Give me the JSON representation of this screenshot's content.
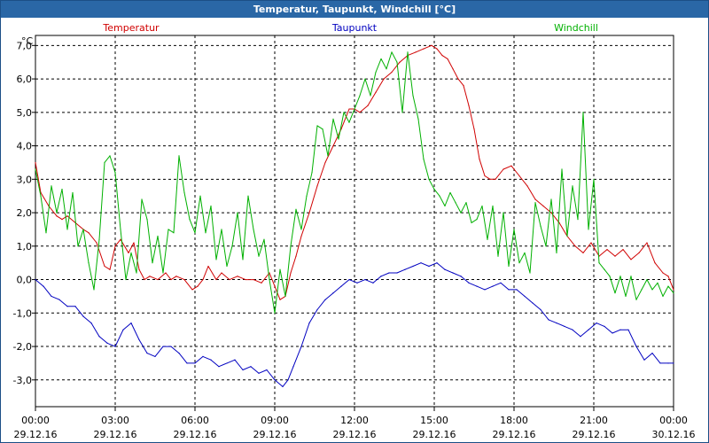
{
  "window": {
    "title": "Temperatur, Taupunkt, Windchill [°C]"
  },
  "colors": {
    "titlebar": "#2a67a6",
    "grid": "#000000",
    "temperatur": "#d00000",
    "taupunkt": "#0000c0",
    "windchill": "#00b000"
  },
  "chart_data": {
    "type": "line",
    "title": "Temperatur, Taupunkt, Windchill [°C]",
    "ylabel": "°C",
    "xlabel": "",
    "ylim": [
      -3.8,
      7.3
    ],
    "xlim": [
      0,
      24
    ],
    "grid": true,
    "yticks": [
      {
        "value": 7,
        "label": "7,0"
      },
      {
        "value": 6,
        "label": "6,0"
      },
      {
        "value": 5,
        "label": "5,0"
      },
      {
        "value": 4,
        "label": "4,0"
      },
      {
        "value": 3,
        "label": "3,0"
      },
      {
        "value": 2,
        "label": "2,0"
      },
      {
        "value": 1,
        "label": "1,0"
      },
      {
        "value": 0,
        "label": "0,0"
      },
      {
        "value": -1,
        "label": "-1,0"
      },
      {
        "value": -2,
        "label": "-2,0"
      },
      {
        "value": -3,
        "label": "-3,0"
      }
    ],
    "xticks": [
      {
        "value": 0,
        "time": "00:00",
        "date": "29.12.16"
      },
      {
        "value": 3,
        "time": "03:00",
        "date": "29.12.16"
      },
      {
        "value": 6,
        "time": "06:00",
        "date": "29.12.16"
      },
      {
        "value": 9,
        "time": "09:00",
        "date": "29.12.16"
      },
      {
        "value": 12,
        "time": "12:00",
        "date": "29.12.16"
      },
      {
        "value": 15,
        "time": "15:00",
        "date": "29.12.16"
      },
      {
        "value": 18,
        "time": "18:00",
        "date": "29.12.16"
      },
      {
        "value": 21,
        "time": "21:00",
        "date": "29.12.16"
      },
      {
        "value": 24,
        "time": "00:00",
        "date": "30.12.16"
      }
    ],
    "series": [
      {
        "name": "Temperatur",
        "legend_position": "top-left",
        "color": "#d00000",
        "x": [
          0,
          0.2,
          0.5,
          0.8,
          1.0,
          1.2,
          1.5,
          1.8,
          2.0,
          2.3,
          2.6,
          2.8,
          3.0,
          3.2,
          3.5,
          3.7,
          3.9,
          4.1,
          4.3,
          4.6,
          4.9,
          5.1,
          5.3,
          5.6,
          5.9,
          6.1,
          6.3,
          6.5,
          6.8,
          7.0,
          7.3,
          7.6,
          7.9,
          8.2,
          8.5,
          8.8,
          9.0,
          9.2,
          9.4,
          9.6,
          9.8,
          10.0,
          10.3,
          10.6,
          10.9,
          11.2,
          11.5,
          11.8,
          12.0,
          12.2,
          12.5,
          12.8,
          13.1,
          13.4,
          13.7,
          14.0,
          14.3,
          14.6,
          14.9,
          15.1,
          15.3,
          15.5,
          15.7,
          15.9,
          16.1,
          16.3,
          16.5,
          16.7,
          16.9,
          17.1,
          17.3,
          17.6,
          17.9,
          18.2,
          18.5,
          18.8,
          19.1,
          19.4,
          19.7,
          20.0,
          20.3,
          20.6,
          20.9,
          21.2,
          21.5,
          21.8,
          22.1,
          22.4,
          22.7,
          23.0,
          23.3,
          23.6,
          23.8,
          24.0
        ],
        "y": [
          3.5,
          2.6,
          2.2,
          1.9,
          1.8,
          1.9,
          1.7,
          1.5,
          1.4,
          1.1,
          0.4,
          0.3,
          1.0,
          1.2,
          0.8,
          1.1,
          0.3,
          0.0,
          0.1,
          0.0,
          0.2,
          0.0,
          0.1,
          0.0,
          -0.3,
          -0.2,
          0.0,
          0.4,
          0.0,
          0.2,
          0.0,
          0.1,
          0.0,
          0.0,
          -0.1,
          0.2,
          -0.2,
          -0.6,
          -0.5,
          0.2,
          0.7,
          1.3,
          2.0,
          2.8,
          3.5,
          4.0,
          4.5,
          5.1,
          5.1,
          5.0,
          5.2,
          5.6,
          6.0,
          6.2,
          6.5,
          6.7,
          6.8,
          6.9,
          7.0,
          6.9,
          6.7,
          6.6,
          6.3,
          6.0,
          5.8,
          5.2,
          4.5,
          3.6,
          3.1,
          3.0,
          3.0,
          3.3,
          3.4,
          3.1,
          2.8,
          2.4,
          2.2,
          2.0,
          1.7,
          1.3,
          1.0,
          0.8,
          1.1,
          0.7,
          0.9,
          0.7,
          0.9,
          0.6,
          0.8,
          1.1,
          0.5,
          0.2,
          0.1,
          -0.3
        ]
      },
      {
        "name": "Taupunkt",
        "legend_position": "top-center",
        "color": "#0000c0",
        "x": [
          0,
          0.3,
          0.6,
          0.9,
          1.2,
          1.5,
          1.8,
          2.1,
          2.4,
          2.7,
          3.0,
          3.3,
          3.6,
          3.9,
          4.2,
          4.5,
          4.8,
          5.1,
          5.4,
          5.7,
          6.0,
          6.3,
          6.6,
          6.9,
          7.2,
          7.5,
          7.8,
          8.1,
          8.4,
          8.7,
          9.0,
          9.3,
          9.5,
          9.7,
          10.0,
          10.3,
          10.6,
          10.9,
          11.2,
          11.5,
          11.8,
          12.1,
          12.4,
          12.7,
          13.0,
          13.3,
          13.6,
          13.9,
          14.2,
          14.5,
          14.8,
          15.1,
          15.4,
          15.7,
          16.0,
          16.3,
          16.6,
          16.9,
          17.2,
          17.5,
          17.8,
          18.1,
          18.4,
          18.7,
          19.0,
          19.3,
          19.6,
          19.9,
          20.2,
          20.5,
          20.8,
          21.1,
          21.4,
          21.7,
          22.0,
          22.3,
          22.6,
          22.9,
          23.2,
          23.5,
          23.8,
          24.0
        ],
        "y": [
          0.0,
          -0.2,
          -0.5,
          -0.6,
          -0.8,
          -0.8,
          -1.1,
          -1.3,
          -1.7,
          -1.9,
          -2.0,
          -1.5,
          -1.3,
          -1.8,
          -2.2,
          -2.3,
          -2.0,
          -2.0,
          -2.2,
          -2.5,
          -2.5,
          -2.3,
          -2.4,
          -2.6,
          -2.5,
          -2.4,
          -2.7,
          -2.6,
          -2.8,
          -2.7,
          -3.0,
          -3.2,
          -3.0,
          -2.6,
          -2.0,
          -1.3,
          -0.9,
          -0.6,
          -0.4,
          -0.2,
          0.0,
          -0.1,
          0.0,
          -0.1,
          0.1,
          0.2,
          0.2,
          0.3,
          0.4,
          0.5,
          0.4,
          0.5,
          0.3,
          0.2,
          0.1,
          -0.1,
          -0.2,
          -0.3,
          -0.2,
          -0.1,
          -0.3,
          -0.3,
          -0.5,
          -0.7,
          -0.9,
          -1.2,
          -1.3,
          -1.4,
          -1.5,
          -1.7,
          -1.5,
          -1.3,
          -1.4,
          -1.6,
          -1.5,
          -1.5,
          -2.0,
          -2.4,
          -2.2,
          -2.5,
          -2.5,
          -2.5
        ]
      },
      {
        "name": "Windchill",
        "legend_position": "top-right",
        "color": "#00b000",
        "x": [
          0,
          0.2,
          0.4,
          0.6,
          0.8,
          1.0,
          1.2,
          1.4,
          1.6,
          1.8,
          2.0,
          2.2,
          2.4,
          2.6,
          2.8,
          3.0,
          3.2,
          3.4,
          3.6,
          3.8,
          4.0,
          4.2,
          4.4,
          4.6,
          4.8,
          5.0,
          5.2,
          5.4,
          5.6,
          5.8,
          6.0,
          6.2,
          6.4,
          6.6,
          6.8,
          7.0,
          7.2,
          7.4,
          7.6,
          7.8,
          8.0,
          8.2,
          8.4,
          8.6,
          8.8,
          9.0,
          9.2,
          9.4,
          9.6,
          9.8,
          10.0,
          10.2,
          10.4,
          10.6,
          10.8,
          11.0,
          11.2,
          11.4,
          11.6,
          11.8,
          12.0,
          12.2,
          12.4,
          12.6,
          12.8,
          13.0,
          13.2,
          13.4,
          13.6,
          13.8,
          14.0,
          14.2,
          14.4,
          14.6,
          14.8,
          15.0,
          15.2,
          15.4,
          15.6,
          15.8,
          16.0,
          16.2,
          16.4,
          16.6,
          16.8,
          17.0,
          17.2,
          17.4,
          17.6,
          17.8,
          18.0,
          18.2,
          18.4,
          18.6,
          18.8,
          19.0,
          19.2,
          19.4,
          19.6,
          19.8,
          20.0,
          20.2,
          20.4,
          20.6,
          20.8,
          21.0,
          21.2,
          21.4,
          21.6,
          21.8,
          22.0,
          22.2,
          22.4,
          22.6,
          22.8,
          23.0,
          23.2,
          23.4,
          23.6,
          23.8,
          24.0
        ],
        "y": [
          3.3,
          2.5,
          1.4,
          2.8,
          2.0,
          2.7,
          1.5,
          2.6,
          1.0,
          1.5,
          0.5,
          -0.3,
          1.2,
          3.5,
          3.7,
          3.2,
          1.5,
          0.0,
          0.8,
          0.2,
          2.4,
          1.8,
          0.5,
          1.3,
          0.2,
          1.5,
          1.4,
          3.7,
          2.6,
          1.8,
          1.4,
          2.5,
          1.4,
          2.2,
          0.6,
          1.5,
          0.4,
          1.0,
          2.0,
          0.6,
          2.5,
          1.5,
          0.7,
          1.2,
          0.0,
          -1.0,
          0.3,
          -0.5,
          1.0,
          2.1,
          1.5,
          2.5,
          3.2,
          4.6,
          4.5,
          3.7,
          4.8,
          4.2,
          5.0,
          4.7,
          5.1,
          5.5,
          6.0,
          5.5,
          6.2,
          6.6,
          6.3,
          6.8,
          6.5,
          5.0,
          6.8,
          5.5,
          4.8,
          3.6,
          3.0,
          2.7,
          2.5,
          2.2,
          2.6,
          2.3,
          2.0,
          2.3,
          1.7,
          1.8,
          2.2,
          1.2,
          2.2,
          0.7,
          2.0,
          0.4,
          1.5,
          0.5,
          0.8,
          0.2,
          2.3,
          1.6,
          1.0,
          2.4,
          0.8,
          3.3,
          1.3,
          2.8,
          1.8,
          5.0,
          1.5,
          3.0,
          0.5,
          0.3,
          0.1,
          -0.4,
          0.1,
          -0.5,
          0.1,
          -0.6,
          -0.3,
          0.0,
          -0.3,
          -0.1,
          -0.5,
          -0.2,
          -0.4
        ]
      }
    ]
  }
}
